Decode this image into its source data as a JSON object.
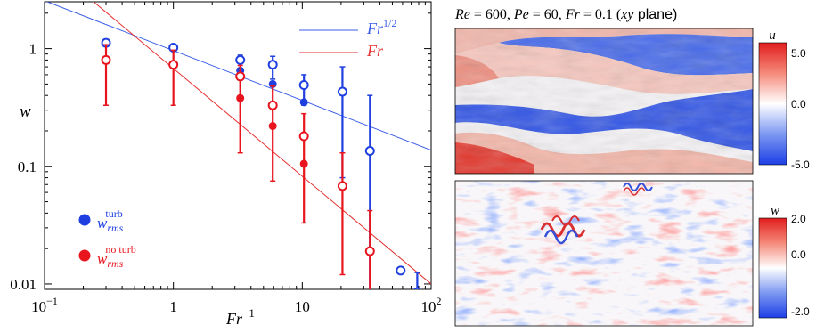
{
  "chart_data": [
    {
      "type": "scatter",
      "xscale": "log",
      "yscale": "log",
      "xlim": [
        0.1,
        100
      ],
      "ylim": [
        0.009,
        2.5
      ],
      "xlabel_base": "Fr",
      "xlabel_sup": "−1",
      "ylabel": "w",
      "xticks": [
        {
          "value": 0.1,
          "base": "10",
          "sup": "−1"
        },
        {
          "value": 1,
          "base": "1",
          "sup": ""
        },
        {
          "value": 10,
          "base": "10",
          "sup": ""
        },
        {
          "value": 100,
          "base": "10",
          "sup": "2"
        }
      ],
      "yticks": [
        {
          "value": 0.01,
          "label": "0.01"
        },
        {
          "value": 0.1,
          "label": "0.1"
        },
        {
          "value": 1,
          "label": "1"
        }
      ],
      "legend_position": "top-right",
      "series": [
        {
          "key": "blue",
          "color": "#1f3fe0",
          "points": [
            {
              "x": 0.3,
              "y": 1.12,
              "lo": 1.07,
              "hi": 1.16,
              "filled": false
            },
            {
              "x": 1.0,
              "y": 1.02,
              "lo": 0.97,
              "hi": 1.06,
              "filled": false
            },
            {
              "x": 3.3,
              "y": 0.8,
              "lo": 0.66,
              "hi": 0.88,
              "filled": false
            },
            {
              "x": 3.3,
              "y": 0.65,
              "lo": 0.65,
              "hi": 0.65,
              "filled": true
            },
            {
              "x": 5.9,
              "y": 0.73,
              "lo": 0.55,
              "hi": 0.86,
              "filled": false
            },
            {
              "x": 5.9,
              "y": 0.5,
              "lo": 0.5,
              "hi": 0.5,
              "filled": true
            },
            {
              "x": 10.3,
              "y": 0.49,
              "lo": 0.33,
              "hi": 0.6,
              "filled": false
            },
            {
              "x": 10.3,
              "y": 0.35,
              "lo": 0.35,
              "hi": 0.35,
              "filled": true
            },
            {
              "x": 20.5,
              "y": 0.43,
              "lo": 0.08,
              "hi": 0.7,
              "filled": false
            },
            {
              "x": 33.5,
              "y": 0.135,
              "lo": 0.0085,
              "hi": 0.4,
              "filled": false
            },
            {
              "x": 58.0,
              "y": 0.013,
              "lo": 0.0126,
              "hi": 0.0134,
              "filled": false
            },
            {
              "x": 78.0,
              "y": 0.0085,
              "lo": 0.0085,
              "hi": 0.0125,
              "filled": false
            }
          ]
        },
        {
          "key": "red",
          "color": "#e8141e",
          "points": [
            {
              "x": 0.3,
              "y": 0.8,
              "lo": 0.33,
              "hi": 1.08,
              "filled": false
            },
            {
              "x": 1.0,
              "y": 0.73,
              "lo": 0.33,
              "hi": 0.97,
              "filled": false
            },
            {
              "x": 3.3,
              "y": 0.58,
              "lo": 0.13,
              "hi": 0.72,
              "filled": false
            },
            {
              "x": 3.3,
              "y": 0.38,
              "lo": 0.38,
              "hi": 0.38,
              "filled": true
            },
            {
              "x": 5.9,
              "y": 0.33,
              "lo": 0.075,
              "hi": 0.48,
              "filled": false
            },
            {
              "x": 5.9,
              "y": 0.22,
              "lo": 0.22,
              "hi": 0.22,
              "filled": true
            },
            {
              "x": 10.3,
              "y": 0.18,
              "lo": 0.033,
              "hi": 0.28,
              "filled": false
            },
            {
              "x": 10.3,
              "y": 0.105,
              "lo": 0.105,
              "hi": 0.105,
              "filled": true
            },
            {
              "x": 20.5,
              "y": 0.068,
              "lo": 0.012,
              "hi": 0.13,
              "filled": false
            },
            {
              "x": 33.5,
              "y": 0.019,
              "lo": 0.0085,
              "hi": 0.042,
              "filled": false
            }
          ]
        }
      ],
      "fit_lines": [
        {
          "key": "blue",
          "color": "#3b5ee8",
          "label_base": "Fr",
          "label_sup": "1/2",
          "x": [
            0.1,
            100
          ],
          "y": [
            2.55,
            0.137
          ]
        },
        {
          "key": "red",
          "color": "#e53030",
          "label_base": "Fr",
          "label_sup": "",
          "x": [
            0.235,
            100
          ],
          "y": [
            2.55,
            0.01
          ]
        }
      ],
      "legend": [
        {
          "key": "blue",
          "color": "#1f3fe0",
          "base": "w",
          "sub": "rms",
          "sup": "turb"
        },
        {
          "key": "red",
          "color": "#e8141e",
          "base": "w",
          "sub": "rms",
          "sup": "no turb"
        }
      ]
    },
    {
      "type": "heatmap",
      "title": "Re = 600, Pe = 60, Fr = 0.1 (xy plane)",
      "title_parts": [
        "Re",
        " = 600, ",
        "Pe",
        " = 60, ",
        "Fr",
        " = 0.1 (",
        "xy",
        " plane)"
      ],
      "panels": [
        {
          "field": "u",
          "colorbar_label": "u",
          "ticks": [
            "5.0",
            "0.0",
            "-5.0"
          ],
          "colors": {
            "high": "#e32222",
            "mid": "#ffffff",
            "low": "#1f44e6"
          }
        },
        {
          "field": "w",
          "colorbar_label": "w",
          "ticks": [
            "2.0",
            "0.0",
            "-2.0"
          ],
          "colors": {
            "high": "#e32222",
            "mid": "#ffffff",
            "low": "#1f44e6"
          }
        }
      ]
    }
  ]
}
